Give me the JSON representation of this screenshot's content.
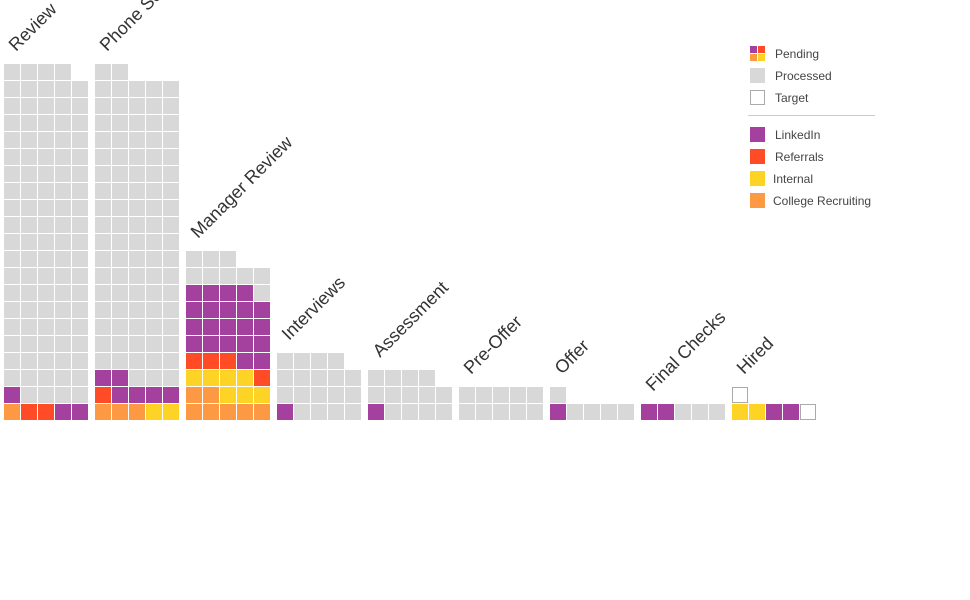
{
  "chart_data": {
    "type": "waffle",
    "columns_per_stage": 5,
    "stages": [
      {
        "name": "Review",
        "pending_rows": [
          [
            "College Recruiting",
            "Referrals",
            "Referrals",
            "LinkedIn",
            "LinkedIn"
          ],
          [
            "LinkedIn"
          ]
        ],
        "processed": 98,
        "target_extra": 0
      },
      {
        "name": "Phone Screen",
        "pending_rows": [
          [
            "College Recruiting",
            "College Recruiting",
            "College Recruiting",
            "Internal",
            "Internal"
          ],
          [
            "Referrals",
            "LinkedIn",
            "LinkedIn",
            "LinkedIn",
            "LinkedIn"
          ],
          [
            "LinkedIn",
            "LinkedIn"
          ]
        ],
        "processed": 90,
        "target_extra": 0
      },
      {
        "name": "Manager Review",
        "pending_rows": [
          [
            "College Recruiting",
            "College Recruiting",
            "College Recruiting",
            "College Recruiting",
            "College Recruiting"
          ],
          [
            "College Recruiting",
            "College Recruiting",
            "Internal",
            "Internal",
            "Internal"
          ],
          [
            "Internal",
            "Internal",
            "Internal",
            "Internal",
            "Referrals"
          ],
          [
            "Referrals",
            "Referrals",
            "Referrals",
            "LinkedIn",
            "LinkedIn"
          ],
          [
            "LinkedIn",
            "LinkedIn",
            "LinkedIn",
            "LinkedIn",
            "LinkedIn"
          ],
          [
            "LinkedIn",
            "LinkedIn",
            "LinkedIn",
            "LinkedIn",
            "LinkedIn"
          ],
          [
            "LinkedIn",
            "LinkedIn",
            "LinkedIn",
            "LinkedIn",
            "LinkedIn"
          ],
          [
            "LinkedIn",
            "LinkedIn",
            "LinkedIn",
            "LinkedIn"
          ]
        ],
        "processed": 9,
        "target_extra": 0
      },
      {
        "name": "Interviews",
        "pending_rows": [
          [
            "LinkedIn"
          ]
        ],
        "processed": 18,
        "target_extra": 0
      },
      {
        "name": "Assessment",
        "pending_rows": [
          [
            "LinkedIn"
          ]
        ],
        "processed": 13,
        "target_extra": 0
      },
      {
        "name": "Pre-Offer",
        "pending_rows": [],
        "processed": 10,
        "target_extra": 0
      },
      {
        "name": "Offer",
        "pending_rows": [
          [
            "LinkedIn"
          ]
        ],
        "processed": 5,
        "target_extra": 0
      },
      {
        "name": "Final Checks",
        "pending_rows": [
          [
            "LinkedIn",
            "LinkedIn"
          ]
        ],
        "processed": 3,
        "target_extra": 0
      },
      {
        "name": "Hired",
        "pending_rows": [
          [
            "Internal",
            "Internal",
            "LinkedIn",
            "LinkedIn"
          ]
        ],
        "processed": 0,
        "target_extra": 2
      }
    ],
    "legend": {
      "position": "top-right",
      "status_items": [
        {
          "key": "pending",
          "label": "Pending"
        },
        {
          "key": "processed",
          "label": "Processed"
        },
        {
          "key": "target",
          "label": "Target"
        }
      ],
      "source_items": [
        {
          "key": "LinkedIn",
          "label": "LinkedIn"
        },
        {
          "key": "Referrals",
          "label": "Referrals"
        },
        {
          "key": "Internal",
          "label": "Internal"
        },
        {
          "key": "College Recruiting",
          "label": "College Recruiting"
        }
      ]
    },
    "colors": {
      "LinkedIn": "#a4409e",
      "Referrals": "#ff4b26",
      "Internal": "#fdd326",
      "College Recruiting": "#fd9843",
      "processed": "#d8d8d8",
      "target_stroke": "#aaaaaa",
      "divider": "#cccccc"
    }
  }
}
